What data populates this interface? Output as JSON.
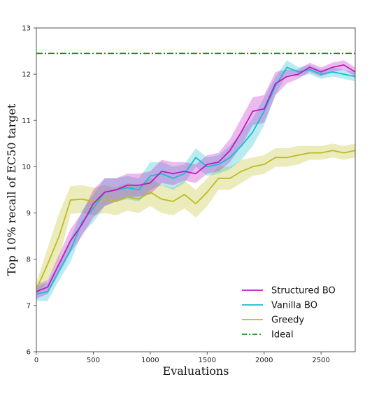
{
  "chart_data": {
    "type": "line",
    "title": "",
    "xlabel": "Evaluations",
    "ylabel": "Top 10% recall of EC50 target",
    "xlim": [
      0,
      2800
    ],
    "ylim": [
      6,
      13
    ],
    "xticks": [
      0,
      500,
      1000,
      1500,
      2000,
      2500
    ],
    "yticks": [
      6,
      7,
      8,
      9,
      10,
      11,
      12,
      13
    ],
    "grid": false,
    "legend_position": "lower-right",
    "x": [
      0,
      100,
      200,
      300,
      400,
      500,
      600,
      700,
      800,
      900,
      1000,
      1100,
      1200,
      1300,
      1400,
      1500,
      1600,
      1700,
      1800,
      1900,
      2000,
      2100,
      2200,
      2300,
      2400,
      2500,
      2600,
      2700,
      2800
    ],
    "series": [
      {
        "name": "Structured BO",
        "color": "#c21ac2",
        "values": [
          7.3,
          7.4,
          7.9,
          8.4,
          8.75,
          9.2,
          9.45,
          9.5,
          9.6,
          9.6,
          9.65,
          9.9,
          9.85,
          9.9,
          9.85,
          10.05,
          10.1,
          10.35,
          10.75,
          11.2,
          11.25,
          11.8,
          11.95,
          12.0,
          12.15,
          12.05,
          12.15,
          12.2,
          12.05
        ],
        "band": [
          0.15,
          0.15,
          0.2,
          0.25,
          0.25,
          0.3,
          0.3,
          0.25,
          0.25,
          0.25,
          0.25,
          0.25,
          0.25,
          0.2,
          0.2,
          0.2,
          0.2,
          0.25,
          0.3,
          0.3,
          0.3,
          0.25,
          0.15,
          0.1,
          0.1,
          0.1,
          0.1,
          0.1,
          0.1
        ]
      },
      {
        "name": "Vanilla BO",
        "color": "#17becf",
        "values": [
          7.25,
          7.3,
          7.75,
          8.2,
          8.8,
          9.1,
          9.45,
          9.5,
          9.55,
          9.5,
          9.8,
          9.85,
          9.75,
          9.85,
          10.2,
          10.0,
          10.05,
          10.2,
          10.45,
          10.75,
          11.2,
          11.75,
          12.15,
          12.05,
          12.1,
          12.0,
          12.05,
          12.0,
          11.95
        ],
        "band": [
          0.15,
          0.2,
          0.2,
          0.25,
          0.25,
          0.3,
          0.3,
          0.25,
          0.25,
          0.25,
          0.3,
          0.25,
          0.25,
          0.2,
          0.2,
          0.2,
          0.2,
          0.25,
          0.3,
          0.3,
          0.3,
          0.2,
          0.15,
          0.1,
          0.1,
          0.1,
          0.1,
          0.1,
          0.1
        ]
      },
      {
        "name": "Greedy",
        "color": "#bcbd22",
        "values": [
          7.35,
          7.9,
          8.5,
          9.28,
          9.3,
          9.25,
          9.3,
          9.25,
          9.35,
          9.3,
          9.45,
          9.3,
          9.25,
          9.4,
          9.2,
          9.45,
          9.75,
          9.75,
          9.9,
          10.0,
          10.05,
          10.2,
          10.2,
          10.25,
          10.3,
          10.3,
          10.35,
          10.3,
          10.35
        ],
        "band": [
          0.15,
          0.35,
          0.5,
          0.3,
          0.3,
          0.3,
          0.3,
          0.3,
          0.3,
          0.3,
          0.3,
          0.3,
          0.3,
          0.3,
          0.3,
          0.3,
          0.25,
          0.25,
          0.25,
          0.2,
          0.2,
          0.2,
          0.2,
          0.2,
          0.15,
          0.15,
          0.15,
          0.15,
          0.15
        ]
      },
      {
        "name": "Ideal",
        "color": "#228b22",
        "style": "dashdot",
        "constant": 12.45
      }
    ]
  }
}
